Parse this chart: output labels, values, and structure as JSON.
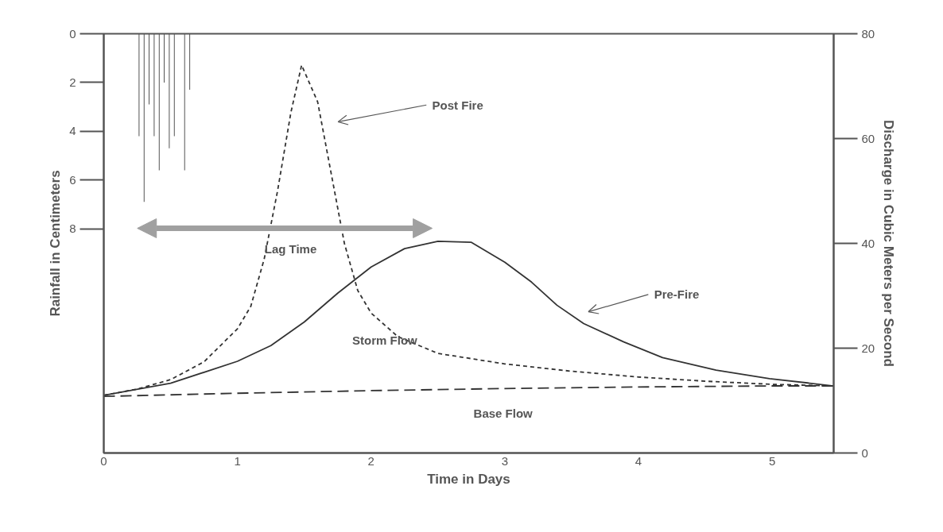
{
  "chart_data": {
    "type": "line",
    "xlabel": "Time in Days",
    "ylabel": "Rainfall in Centimeters",
    "y2label": "Discharge in Cubic Meters per Second",
    "xlim": [
      0,
      5.46
    ],
    "xticks": [
      0,
      1,
      2,
      3,
      4,
      5
    ],
    "ylim": [
      17.2,
      0
    ],
    "yticks": [
      0,
      2,
      4,
      6,
      8
    ],
    "y2lim": [
      0,
      80
    ],
    "y2ticks": [
      0,
      20,
      40,
      60,
      80
    ],
    "grid": false,
    "series": [
      {
        "type": "bar",
        "axis": "y",
        "color": "#555555",
        "x": [
          0.264,
          0.302,
          0.339,
          0.377,
          0.415,
          0.452,
          0.49,
          0.528,
          0.605,
          0.643
        ],
        "values": [
          4.2,
          6.9,
          2.9,
          4.2,
          5.6,
          2.0,
          4.7,
          4.2,
          5.6,
          2.3
        ]
      },
      {
        "axis": "y2",
        "color": "#333333",
        "line_style": "dotted",
        "x": [
          0,
          0.25,
          0.5,
          0.75,
          1.0,
          1.1,
          1.2,
          1.3,
          1.4,
          1.48,
          1.6,
          1.7,
          1.8,
          1.9,
          2.0,
          2.2,
          2.5,
          3.0,
          3.5,
          4.0,
          4.5,
          5.0,
          5.46
        ],
        "values": [
          11,
          12.2,
          14,
          17.4,
          23.7,
          28,
          37,
          50,
          65,
          74,
          67,
          53.5,
          40,
          31,
          26.7,
          22.2,
          19,
          17,
          15.6,
          14.5,
          13.7,
          13.1,
          12.8
        ]
      },
      {
        "axis": "y2",
        "color": "#333333",
        "line_style": "solid",
        "x": [
          0,
          0.5,
          1.0,
          1.25,
          1.5,
          1.75,
          2.0,
          2.25,
          2.5,
          2.75,
          3.0,
          3.2,
          3.39,
          3.59,
          3.89,
          4.18,
          4.58,
          4.98,
          5.46
        ],
        "values": [
          11,
          13.3,
          17.5,
          20.5,
          25,
          30.5,
          35.5,
          39,
          40.4,
          40.2,
          36.4,
          32.6,
          28.2,
          24.7,
          21.2,
          18.2,
          15.8,
          14.2,
          12.8
        ]
      },
      {
        "axis": "y2",
        "color": "#333333",
        "line_style": "dashed",
        "x": [
          0,
          1,
          2,
          3,
          4,
          5,
          5.46
        ],
        "values": [
          10.8,
          11.4,
          11.9,
          12.3,
          12.6,
          12.8,
          12.8
        ]
      }
    ],
    "annotations": [
      "Post Fire",
      "Pre-Fire",
      "Storm Flow",
      "Base Flow",
      "Lag Time"
    ]
  }
}
